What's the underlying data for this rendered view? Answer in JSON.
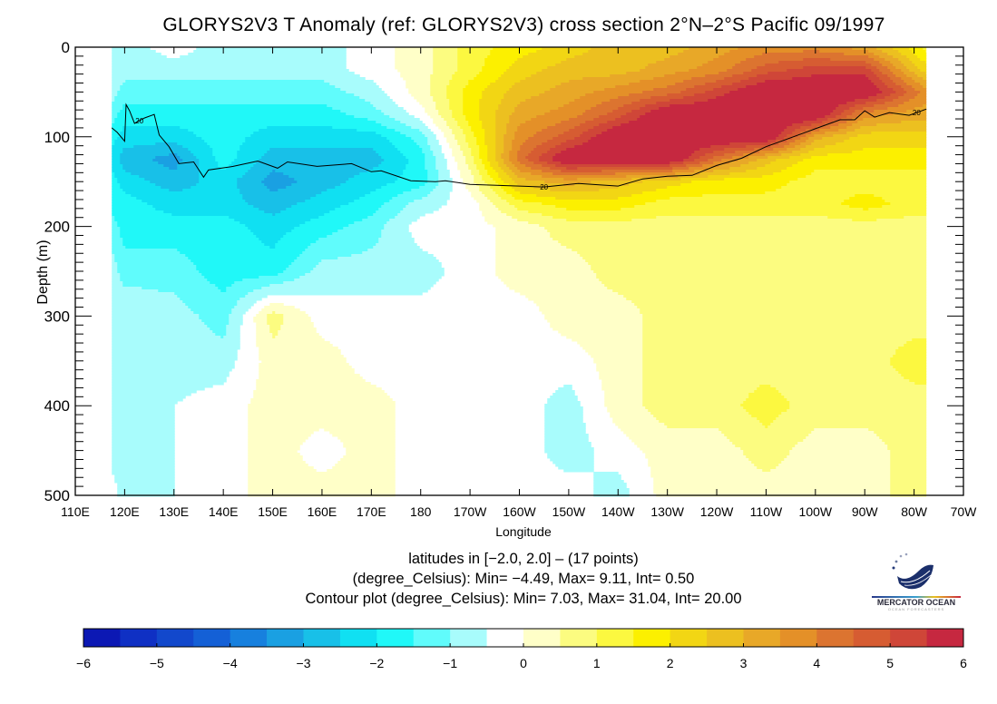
{
  "title": "GLORYS2V3 T Anomaly (ref: GLORYS2V3) cross section 2°N–2°S Pacific 09/1997",
  "info_lines": [
    "latitudes in [−2.0, 2.0] – (17 points)",
    "(degree_Celsius): Min= −4.49, Max= 9.11, Int= 0.50",
    "Contour plot (degree_Celsius): Min= 7.03, Max= 31.04, Int= 20.00"
  ],
  "logo": {
    "name": "MERCATOR OCEAN",
    "tagline": "OCEAN FORECASTERS"
  },
  "chart_data": {
    "type": "heatmap",
    "title": "GLORYS2V3 T Anomaly (ref: GLORYS2V3) cross section 2°N–2°S Pacific 09/1997",
    "xlabel": "Longitude",
    "ylabel": "Depth (m)",
    "xlim_deg_east": [
      110,
      290
    ],
    "ylim": [
      500,
      0
    ],
    "x_tick_labels": [
      "110E",
      "120E",
      "130E",
      "140E",
      "150E",
      "160E",
      "170E",
      "180",
      "170W",
      "160W",
      "150W",
      "140W",
      "130W",
      "120W",
      "110W",
      "100W",
      "90W",
      "80W",
      "70W"
    ],
    "y_tick_labels": [
      "0",
      "100",
      "200",
      "300",
      "400",
      "500"
    ],
    "grid": false,
    "units": "degree_Celsius",
    "lon_deg_east": [
      117.4,
      120,
      130,
      140,
      150,
      160,
      170,
      180,
      190,
      200,
      210,
      220,
      230,
      240,
      250,
      260,
      270,
      280,
      282.5
    ],
    "depth_m": [
      0,
      25,
      50,
      75,
      100,
      125,
      150,
      175,
      200,
      250,
      300,
      350,
      400,
      450,
      500
    ],
    "anomaly_by_depth": [
      [
        -0.75,
        -0.75,
        -0.25,
        -0.75,
        -0.75,
        -0.75,
        -0.25,
        0.25,
        1.25,
        1.75,
        2.25,
        2.75,
        2.75,
        3.25,
        3.75,
        3.75,
        3.25,
        1.75,
        1.25
      ],
      [
        -0.75,
        -0.75,
        -0.75,
        -0.75,
        -0.75,
        -0.75,
        -0.25,
        0.25,
        1.25,
        2.25,
        2.75,
        2.75,
        3.25,
        3.75,
        4.75,
        5.25,
        5.25,
        2.75,
        2.25
      ],
      [
        -0.75,
        -1.25,
        -1.25,
        -1.25,
        -1.25,
        -1.25,
        -0.75,
        0.25,
        1.75,
        2.75,
        3.25,
        3.75,
        4.25,
        5.25,
        6.25,
        6.25,
        6.25,
        4.25,
        3.75
      ],
      [
        -1.25,
        -1.75,
        -1.75,
        -1.75,
        -1.75,
        -1.75,
        -1.25,
        -0.25,
        1.75,
        3.25,
        3.75,
        4.75,
        6.25,
        6.25,
        6.25,
        6.25,
        3.75,
        3.25,
        3.25
      ],
      [
        -1.75,
        -2.25,
        -2.25,
        -1.75,
        -2.25,
        -2.25,
        -2.25,
        -1.25,
        1.25,
        3.75,
        4.75,
        6.25,
        6.25,
        6.25,
        6.25,
        3.25,
        2.25,
        2.25,
        2.25
      ],
      [
        -2.25,
        -2.75,
        -3.25,
        -1.75,
        -2.75,
        -2.75,
        -2.75,
        -1.75,
        0.75,
        4.25,
        6.25,
        6.25,
        6.25,
        4.25,
        2.75,
        1.75,
        1.75,
        1.75,
        1.75
      ],
      [
        -1.75,
        -2.25,
        -2.75,
        -2.25,
        -3.25,
        -2.75,
        -2.25,
        -1.75,
        0.25,
        2.75,
        3.25,
        2.75,
        2.25,
        1.75,
        1.75,
        1.25,
        1.25,
        1.25,
        1.25
      ],
      [
        -1.75,
        -1.75,
        -2.25,
        -2.25,
        -2.75,
        -2.25,
        -1.75,
        -0.75,
        -0.25,
        1.25,
        1.75,
        1.75,
        1.25,
        1.25,
        1.25,
        1.25,
        1.75,
        1.25,
        1.25
      ],
      [
        -1.25,
        -1.75,
        -1.75,
        -1.75,
        -2.25,
        -1.75,
        -1.25,
        -0.25,
        -0.25,
        0.25,
        0.75,
        0.75,
        0.75,
        0.75,
        0.75,
        0.75,
        0.75,
        0.75,
        0.75
      ],
      [
        -0.75,
        -1.25,
        -1.25,
        -1.75,
        -1.75,
        -0.75,
        -0.75,
        -0.75,
        -0.25,
        0.25,
        0.25,
        0.75,
        0.75,
        0.75,
        0.75,
        0.75,
        0.75,
        0.75,
        0.75
      ],
      [
        -0.75,
        -0.5,
        -0.75,
        -1.25,
        0.75,
        -0.25,
        -0.25,
        -0.25,
        -0.25,
        -0.25,
        0.25,
        0.25,
        0.75,
        0.75,
        0.75,
        0.75,
        0.75,
        0.75,
        0.75
      ],
      [
        -0.75,
        -0.75,
        -0.75,
        -0.75,
        0.25,
        0.25,
        -0.25,
        -0.25,
        -0.25,
        -0.25,
        -0.25,
        0.25,
        0.75,
        0.75,
        0.75,
        0.75,
        0.75,
        1.25,
        1.25
      ],
      [
        -0.75,
        -0.75,
        -0.5,
        -0.25,
        0.25,
        0.25,
        0.25,
        -0.25,
        -0.25,
        -0.25,
        -0.75,
        0.25,
        0.75,
        0.75,
        1.25,
        0.75,
        0.75,
        0.75,
        0.75
      ],
      [
        -0.75,
        -0.75,
        -0.5,
        -0.25,
        0.25,
        -0.25,
        0.25,
        -0.25,
        -0.25,
        -0.25,
        -0.75,
        -0.25,
        0.25,
        0.25,
        0.75,
        0.25,
        0.25,
        0.75,
        0.75
      ],
      [
        -0.25,
        -0.75,
        -0.5,
        -0.25,
        0.25,
        0.25,
        0.25,
        -0.25,
        -0.25,
        -0.25,
        -0.25,
        -0.75,
        0.25,
        0.25,
        0.25,
        0.25,
        0.25,
        0.75,
        0.75
      ]
    ],
    "contour": {
      "level": 20,
      "label": "20",
      "lon_deg_east": [
        117.4,
        118.5,
        120,
        120.3,
        121,
        122,
        124,
        126,
        127,
        129,
        131,
        134,
        136,
        137,
        142,
        147,
        151,
        153,
        159,
        166,
        170,
        172,
        178,
        183,
        185,
        190,
        200,
        205,
        212,
        220,
        225,
        230,
        235,
        240,
        245,
        250,
        254,
        260,
        265,
        268,
        270,
        272,
        275,
        279,
        282.5
      ],
      "depth_m": [
        90,
        95,
        105,
        64,
        71,
        85,
        79,
        75,
        98,
        111,
        130,
        128,
        145,
        137,
        133,
        127,
        135,
        128,
        133,
        130,
        139,
        138,
        149,
        150,
        149,
        153,
        155,
        156,
        152,
        155,
        147,
        144,
        143,
        132,
        124,
        111,
        103,
        91,
        81,
        81,
        71,
        78,
        73,
        76,
        69
      ],
      "label_lon_deg_east": [
        123,
        205,
        280.5
      ]
    },
    "colorbar": {
      "min": -6,
      "max": 6,
      "step": 0.5,
      "tick_labels": [
        "−6",
        "−5",
        "−4",
        "−3",
        "−2",
        "−1",
        "0",
        "1",
        "2",
        "3",
        "4",
        "5",
        "6"
      ],
      "colors": [
        "#0c18b4",
        "#0f30c4",
        "#1248cc",
        "#1460d6",
        "#1780de",
        "#1aa0e2",
        "#18c0e8",
        "#10e0f2",
        "#20f8f8",
        "#60fcfc",
        "#a8fcfc",
        "#ffffff",
        "#ffffc8",
        "#fcfc80",
        "#fcf840",
        "#fcf000",
        "#f2d614",
        "#ecc020",
        "#e8a828",
        "#e49028",
        "#dc7430",
        "#d65c32",
        "#cf4638",
        "#c62840"
      ]
    }
  }
}
